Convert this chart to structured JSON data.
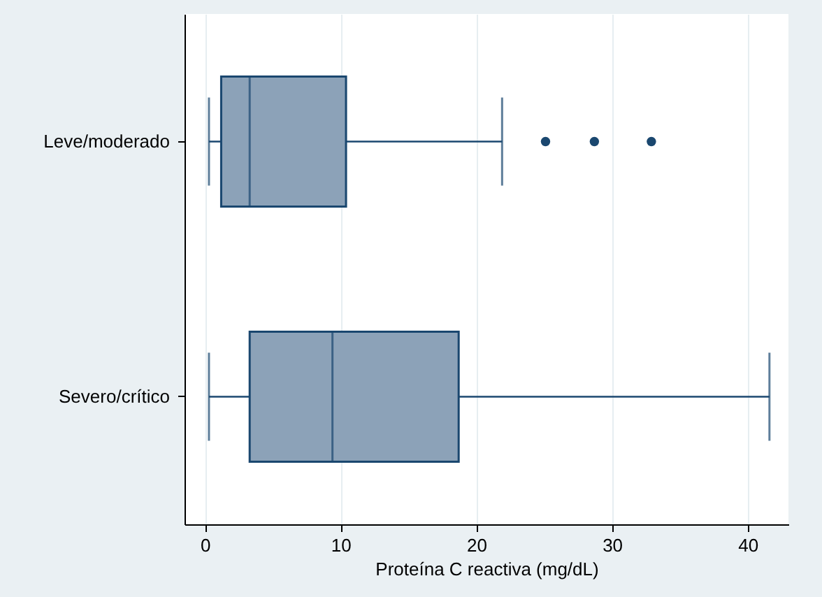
{
  "chart_data": {
    "type": "box",
    "orientation": "horizontal",
    "xlabel": "Proteína C reactiva (mg/dL)",
    "categories": [
      "Leve/moderado",
      "Severo/crítico"
    ],
    "xlim": [
      -1.5,
      43
    ],
    "xticks": [
      0,
      10,
      20,
      30,
      40
    ],
    "grid": "x",
    "series": [
      {
        "color": "#8ca2b8",
        "boxes": [
          {
            "low": 0.3,
            "q1": 1.2,
            "median": 3.3,
            "q3": 10.4,
            "high": 21.9,
            "outliers": [
              25.1,
              28.7,
              32.9
            ]
          },
          {
            "low": 0.3,
            "q1": 3.3,
            "median": 9.4,
            "q3": 18.7,
            "high": 41.6
          }
        ]
      }
    ]
  }
}
